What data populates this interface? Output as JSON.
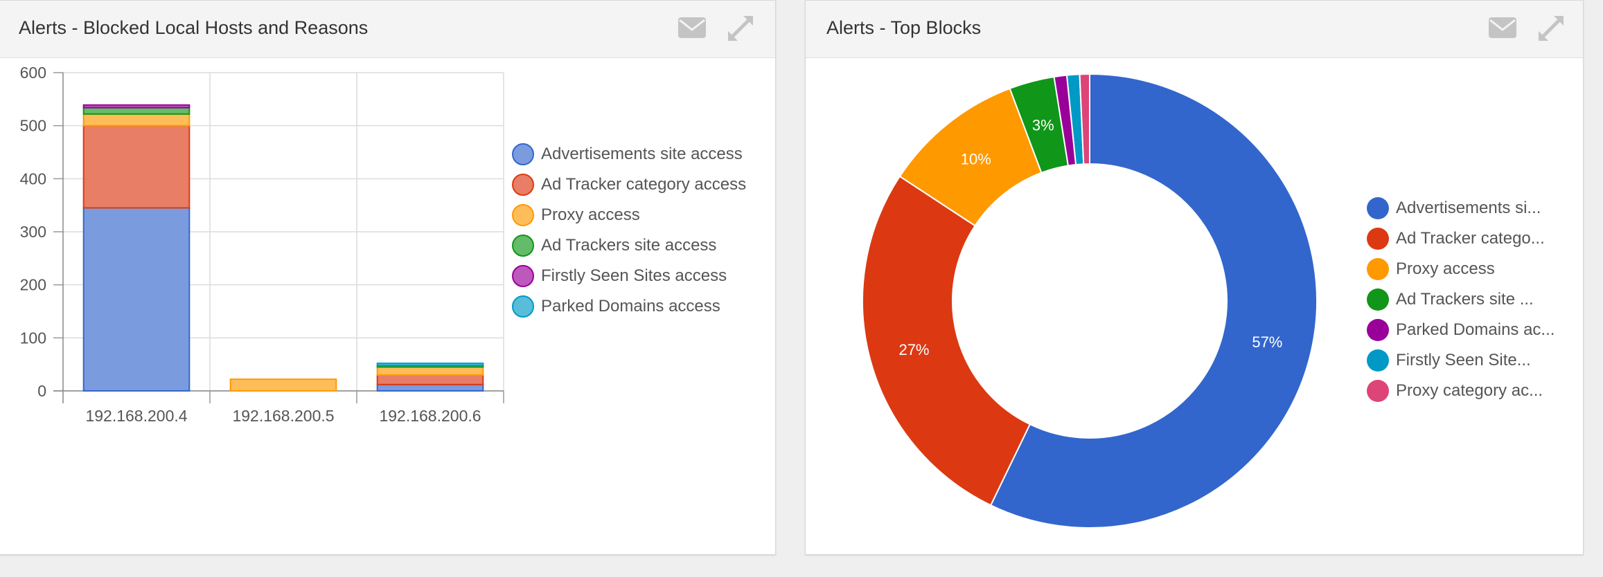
{
  "colors": {
    "blue": "#3366cc",
    "red": "#dc3912",
    "orange": "#ff9900",
    "green": "#109618",
    "purple": "#990099",
    "cyan": "#0099c6",
    "pink": "#dd4477"
  },
  "icons": {
    "email": "envelope-icon",
    "expand": "expand-icon"
  },
  "panels": {
    "left": {
      "title": "Alerts - Blocked Local Hosts and Reasons"
    },
    "right": {
      "title": "Alerts - Top Blocks"
    }
  },
  "chart_data": [
    {
      "type": "bar",
      "stacked": true,
      "title": "Alerts - Blocked Local Hosts and Reasons",
      "categories": [
        "192.168.200.4",
        "192.168.200.5",
        "192.168.200.6"
      ],
      "ylim": [
        0,
        600
      ],
      "yticks": [
        0,
        100,
        200,
        300,
        400,
        500,
        600
      ],
      "grid": true,
      "legend_position": "right",
      "series": [
        {
          "name": "Advertisements site access",
          "color": "#3366cc",
          "values": [
            345,
            0,
            12
          ]
        },
        {
          "name": "Ad Tracker category access",
          "color": "#dc3912",
          "values": [
            155,
            0,
            18
          ]
        },
        {
          "name": "Proxy access",
          "color": "#ff9900",
          "values": [
            22,
            22,
            15
          ]
        },
        {
          "name": "Ad Trackers site access",
          "color": "#109618",
          "values": [
            12,
            0,
            3
          ]
        },
        {
          "name": "Firstly Seen Sites access",
          "color": "#990099",
          "values": [
            5,
            0,
            0
          ]
        },
        {
          "name": "Parked Domains access",
          "color": "#0099c6",
          "values": [
            0,
            0,
            4
          ]
        }
      ]
    },
    {
      "type": "pie",
      "donut": true,
      "title": "Alerts - Top Blocks",
      "legend_position": "right",
      "slices": [
        {
          "label": "Advertisements si...",
          "value": 57,
          "color": "#3366cc",
          "show_label": "57%"
        },
        {
          "label": "Ad Tracker catego...",
          "value": 27,
          "color": "#dc3912",
          "show_label": "27%"
        },
        {
          "label": "Proxy access",
          "value": 10,
          "color": "#ff9900",
          "show_label": "10%"
        },
        {
          "label": "Ad Trackers site ...",
          "value": 3.2,
          "color": "#109618",
          "show_label": "3%"
        },
        {
          "label": "Parked Domains ac...",
          "value": 0.9,
          "color": "#990099",
          "show_label": ""
        },
        {
          "label": "Firstly Seen Site...",
          "value": 0.9,
          "color": "#0099c6",
          "show_label": ""
        },
        {
          "label": "Proxy category ac...",
          "value": 0.7,
          "color": "#dd4477",
          "show_label": ""
        }
      ]
    }
  ]
}
